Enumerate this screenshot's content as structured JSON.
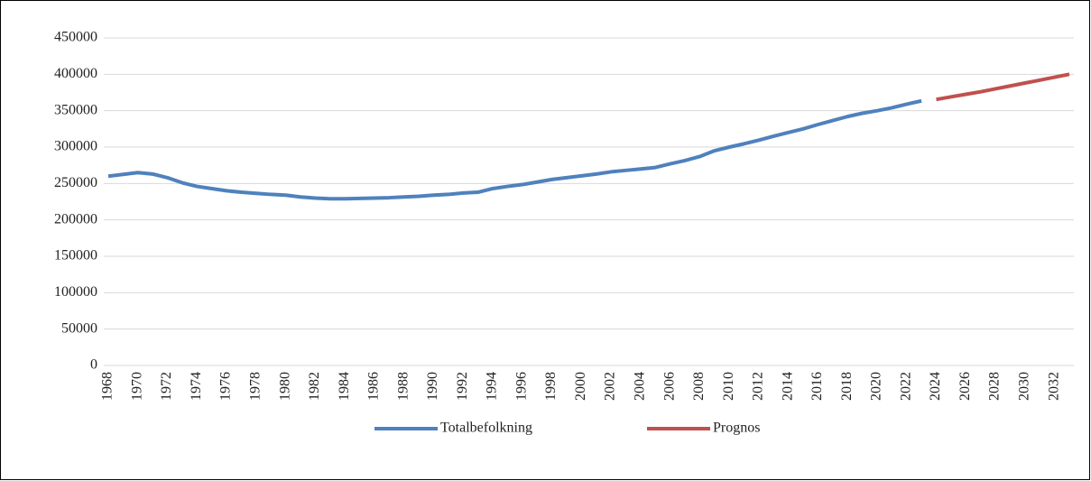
{
  "chart_data": {
    "type": "line",
    "categories": [
      "1968",
      null,
      "1970",
      null,
      "1972",
      null,
      "1974",
      null,
      "1976",
      null,
      "1978",
      null,
      "1980",
      null,
      "1982",
      null,
      "1984",
      null,
      "1986",
      null,
      "1988",
      null,
      "1990",
      null,
      "1992",
      null,
      "1994",
      null,
      "1996",
      null,
      "1998",
      null,
      "2000",
      null,
      "2002",
      null,
      "2004",
      null,
      "2006",
      null,
      "2008",
      null,
      "2010",
      null,
      "2012",
      null,
      "2014",
      null,
      "2016",
      null,
      "2018",
      null,
      "2020",
      null,
      "2022",
      null,
      "2024",
      null,
      "2026",
      null,
      "2028",
      null,
      "2030",
      null,
      "2032",
      null
    ],
    "series": [
      {
        "name": "Totalbefolkning",
        "color": "#4f81bd",
        "values": [
          260000,
          262500,
          265000,
          263000,
          258000,
          251000,
          246000,
          243000,
          240000,
          238000,
          236500,
          235000,
          234000,
          231500,
          230000,
          229000,
          229000,
          229500,
          230000,
          230500,
          231500,
          232500,
          234000,
          235000,
          237000,
          238000,
          243000,
          246000,
          248500,
          252000,
          255500,
          258000,
          260500,
          263000,
          266000,
          268000,
          270000,
          272000,
          277000,
          281500,
          287000,
          295000,
          300000,
          304500,
          309500,
          315000,
          320000,
          325000,
          331000,
          336500,
          342000,
          346500,
          350000,
          354000,
          359000,
          363500,
          null,
          null,
          null,
          null,
          null,
          null,
          null,
          null,
          null,
          null
        ]
      },
      {
        "name": "Prognos",
        "color": "#c0504d",
        "values": [
          null,
          null,
          null,
          null,
          null,
          null,
          null,
          null,
          null,
          null,
          null,
          null,
          null,
          null,
          null,
          null,
          null,
          null,
          null,
          null,
          null,
          null,
          null,
          null,
          null,
          null,
          null,
          null,
          null,
          null,
          null,
          null,
          null,
          null,
          null,
          null,
          null,
          null,
          null,
          null,
          null,
          null,
          null,
          null,
          null,
          null,
          null,
          null,
          null,
          null,
          null,
          null,
          null,
          null,
          null,
          null,
          365500,
          369000,
          372500,
          376000,
          380000,
          384000,
          388000,
          392000,
          396000,
          400000
        ]
      }
    ],
    "ylim": [
      0,
      450000
    ],
    "yticks": [
      0,
      50000,
      100000,
      150000,
      200000,
      250000,
      300000,
      350000,
      400000,
      450000
    ],
    "grid": true,
    "legend": "bottom"
  }
}
